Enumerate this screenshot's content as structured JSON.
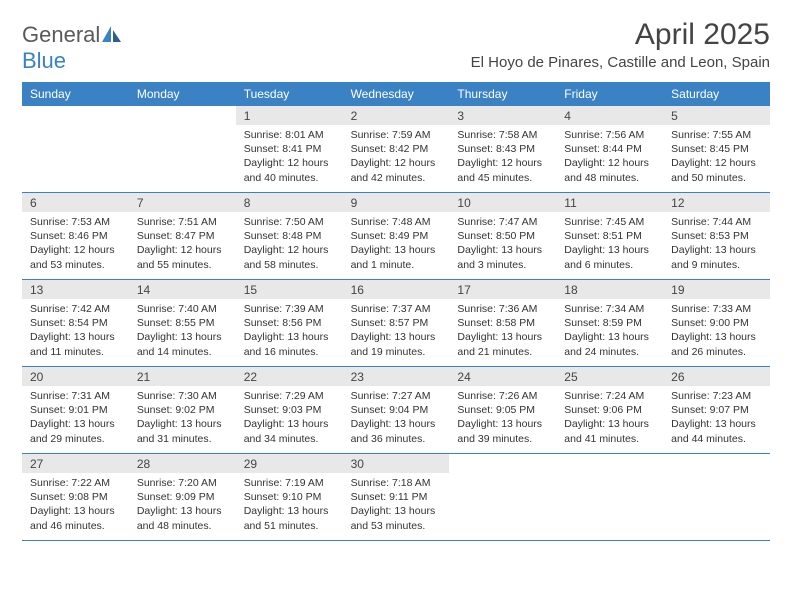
{
  "brand": {
    "part1": "General",
    "part2": "Blue"
  },
  "title": "April 2025",
  "location": "El Hoyo de Pinares, Castille and Leon, Spain",
  "colors": {
    "header_bg": "#3b82c4",
    "header_fg": "#ffffff",
    "daynum_bg": "#e8e8e8",
    "text": "#333333",
    "rule": "#3b82c4"
  },
  "day_names": [
    "Sunday",
    "Monday",
    "Tuesday",
    "Wednesday",
    "Thursday",
    "Friday",
    "Saturday"
  ],
  "weeks": [
    [
      {
        "n": "",
        "lines": []
      },
      {
        "n": "",
        "lines": []
      },
      {
        "n": "1",
        "lines": [
          "Sunrise: 8:01 AM",
          "Sunset: 8:41 PM",
          "Daylight: 12 hours",
          "and 40 minutes."
        ]
      },
      {
        "n": "2",
        "lines": [
          "Sunrise: 7:59 AM",
          "Sunset: 8:42 PM",
          "Daylight: 12 hours",
          "and 42 minutes."
        ]
      },
      {
        "n": "3",
        "lines": [
          "Sunrise: 7:58 AM",
          "Sunset: 8:43 PM",
          "Daylight: 12 hours",
          "and 45 minutes."
        ]
      },
      {
        "n": "4",
        "lines": [
          "Sunrise: 7:56 AM",
          "Sunset: 8:44 PM",
          "Daylight: 12 hours",
          "and 48 minutes."
        ]
      },
      {
        "n": "5",
        "lines": [
          "Sunrise: 7:55 AM",
          "Sunset: 8:45 PM",
          "Daylight: 12 hours",
          "and 50 minutes."
        ]
      }
    ],
    [
      {
        "n": "6",
        "lines": [
          "Sunrise: 7:53 AM",
          "Sunset: 8:46 PM",
          "Daylight: 12 hours",
          "and 53 minutes."
        ]
      },
      {
        "n": "7",
        "lines": [
          "Sunrise: 7:51 AM",
          "Sunset: 8:47 PM",
          "Daylight: 12 hours",
          "and 55 minutes."
        ]
      },
      {
        "n": "8",
        "lines": [
          "Sunrise: 7:50 AM",
          "Sunset: 8:48 PM",
          "Daylight: 12 hours",
          "and 58 minutes."
        ]
      },
      {
        "n": "9",
        "lines": [
          "Sunrise: 7:48 AM",
          "Sunset: 8:49 PM",
          "Daylight: 13 hours",
          "and 1 minute."
        ]
      },
      {
        "n": "10",
        "lines": [
          "Sunrise: 7:47 AM",
          "Sunset: 8:50 PM",
          "Daylight: 13 hours",
          "and 3 minutes."
        ]
      },
      {
        "n": "11",
        "lines": [
          "Sunrise: 7:45 AM",
          "Sunset: 8:51 PM",
          "Daylight: 13 hours",
          "and 6 minutes."
        ]
      },
      {
        "n": "12",
        "lines": [
          "Sunrise: 7:44 AM",
          "Sunset: 8:53 PM",
          "Daylight: 13 hours",
          "and 9 minutes."
        ]
      }
    ],
    [
      {
        "n": "13",
        "lines": [
          "Sunrise: 7:42 AM",
          "Sunset: 8:54 PM",
          "Daylight: 13 hours",
          "and 11 minutes."
        ]
      },
      {
        "n": "14",
        "lines": [
          "Sunrise: 7:40 AM",
          "Sunset: 8:55 PM",
          "Daylight: 13 hours",
          "and 14 minutes."
        ]
      },
      {
        "n": "15",
        "lines": [
          "Sunrise: 7:39 AM",
          "Sunset: 8:56 PM",
          "Daylight: 13 hours",
          "and 16 minutes."
        ]
      },
      {
        "n": "16",
        "lines": [
          "Sunrise: 7:37 AM",
          "Sunset: 8:57 PM",
          "Daylight: 13 hours",
          "and 19 minutes."
        ]
      },
      {
        "n": "17",
        "lines": [
          "Sunrise: 7:36 AM",
          "Sunset: 8:58 PM",
          "Daylight: 13 hours",
          "and 21 minutes."
        ]
      },
      {
        "n": "18",
        "lines": [
          "Sunrise: 7:34 AM",
          "Sunset: 8:59 PM",
          "Daylight: 13 hours",
          "and 24 minutes."
        ]
      },
      {
        "n": "19",
        "lines": [
          "Sunrise: 7:33 AM",
          "Sunset: 9:00 PM",
          "Daylight: 13 hours",
          "and 26 minutes."
        ]
      }
    ],
    [
      {
        "n": "20",
        "lines": [
          "Sunrise: 7:31 AM",
          "Sunset: 9:01 PM",
          "Daylight: 13 hours",
          "and 29 minutes."
        ]
      },
      {
        "n": "21",
        "lines": [
          "Sunrise: 7:30 AM",
          "Sunset: 9:02 PM",
          "Daylight: 13 hours",
          "and 31 minutes."
        ]
      },
      {
        "n": "22",
        "lines": [
          "Sunrise: 7:29 AM",
          "Sunset: 9:03 PM",
          "Daylight: 13 hours",
          "and 34 minutes."
        ]
      },
      {
        "n": "23",
        "lines": [
          "Sunrise: 7:27 AM",
          "Sunset: 9:04 PM",
          "Daylight: 13 hours",
          "and 36 minutes."
        ]
      },
      {
        "n": "24",
        "lines": [
          "Sunrise: 7:26 AM",
          "Sunset: 9:05 PM",
          "Daylight: 13 hours",
          "and 39 minutes."
        ]
      },
      {
        "n": "25",
        "lines": [
          "Sunrise: 7:24 AM",
          "Sunset: 9:06 PM",
          "Daylight: 13 hours",
          "and 41 minutes."
        ]
      },
      {
        "n": "26",
        "lines": [
          "Sunrise: 7:23 AM",
          "Sunset: 9:07 PM",
          "Daylight: 13 hours",
          "and 44 minutes."
        ]
      }
    ],
    [
      {
        "n": "27",
        "lines": [
          "Sunrise: 7:22 AM",
          "Sunset: 9:08 PM",
          "Daylight: 13 hours",
          "and 46 minutes."
        ]
      },
      {
        "n": "28",
        "lines": [
          "Sunrise: 7:20 AM",
          "Sunset: 9:09 PM",
          "Daylight: 13 hours",
          "and 48 minutes."
        ]
      },
      {
        "n": "29",
        "lines": [
          "Sunrise: 7:19 AM",
          "Sunset: 9:10 PM",
          "Daylight: 13 hours",
          "and 51 minutes."
        ]
      },
      {
        "n": "30",
        "lines": [
          "Sunrise: 7:18 AM",
          "Sunset: 9:11 PM",
          "Daylight: 13 hours",
          "and 53 minutes."
        ]
      },
      {
        "n": "",
        "lines": []
      },
      {
        "n": "",
        "lines": []
      },
      {
        "n": "",
        "lines": []
      }
    ]
  ]
}
